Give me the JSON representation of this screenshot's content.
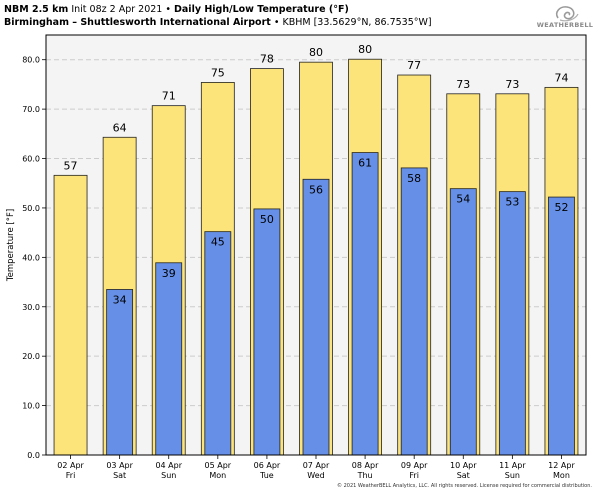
{
  "header": {
    "model": "NBM 2.5 km",
    "init": "Init 08z 2 Apr 2021",
    "product": "Daily High/Low Temperature (°F)",
    "station": "Birmingham – Shuttlesworth International Airport",
    "station_meta": "KBHM [33.5629°N, 86.7535°W]",
    "bullet": "•"
  },
  "logo": {
    "text": "WEATHERBELL",
    "icon": "swirl-logo-icon"
  },
  "copyright": "© 2021 WeatherBELL Analytics, LLC. All rights reserved. License required for commercial distribution.",
  "colors": {
    "high": "#fce37a",
    "low": "#6690e8",
    "plot_bg": "#f4f4f4",
    "grid": "#cccccc"
  },
  "chart_data": {
    "type": "bar",
    "ylabel": "Temperature [°F]",
    "ylim": [
      0,
      85
    ],
    "yticks": [
      0,
      10,
      20,
      30,
      40,
      50,
      60,
      70,
      80
    ],
    "ytick_labels": [
      "0.0",
      "10.0",
      "20.0",
      "30.0",
      "40.0",
      "50.0",
      "60.0",
      "70.0",
      "80.0"
    ],
    "grid": true,
    "categories": [
      {
        "date": "02 Apr",
        "day": "Fri"
      },
      {
        "date": "03 Apr",
        "day": "Sat"
      },
      {
        "date": "04 Apr",
        "day": "Sun"
      },
      {
        "date": "05 Apr",
        "day": "Mon"
      },
      {
        "date": "06 Apr",
        "day": "Tue"
      },
      {
        "date": "07 Apr",
        "day": "Wed"
      },
      {
        "date": "08 Apr",
        "day": "Thu"
      },
      {
        "date": "09 Apr",
        "day": "Fri"
      },
      {
        "date": "10 Apr",
        "day": "Sat"
      },
      {
        "date": "11 Apr",
        "day": "Sun"
      },
      {
        "date": "12 Apr",
        "day": "Mon"
      }
    ],
    "series": [
      {
        "key": "high",
        "values": [
          56.6,
          64.3,
          70.7,
          75.4,
          78.2,
          79.5,
          80.1,
          76.9,
          73.1,
          73.1,
          74.4
        ],
        "labels": [
          "57",
          "64",
          "71",
          "75",
          "78",
          "80",
          "80",
          "77",
          "73",
          "73",
          "74"
        ]
      },
      {
        "key": "low",
        "values": [
          null,
          33.5,
          38.9,
          45.2,
          49.8,
          55.8,
          61.2,
          58.1,
          53.9,
          53.3,
          52.2
        ],
        "labels": [
          null,
          "34",
          "39",
          "45",
          "50",
          "56",
          "61",
          "58",
          "54",
          "53",
          "52"
        ]
      }
    ]
  }
}
